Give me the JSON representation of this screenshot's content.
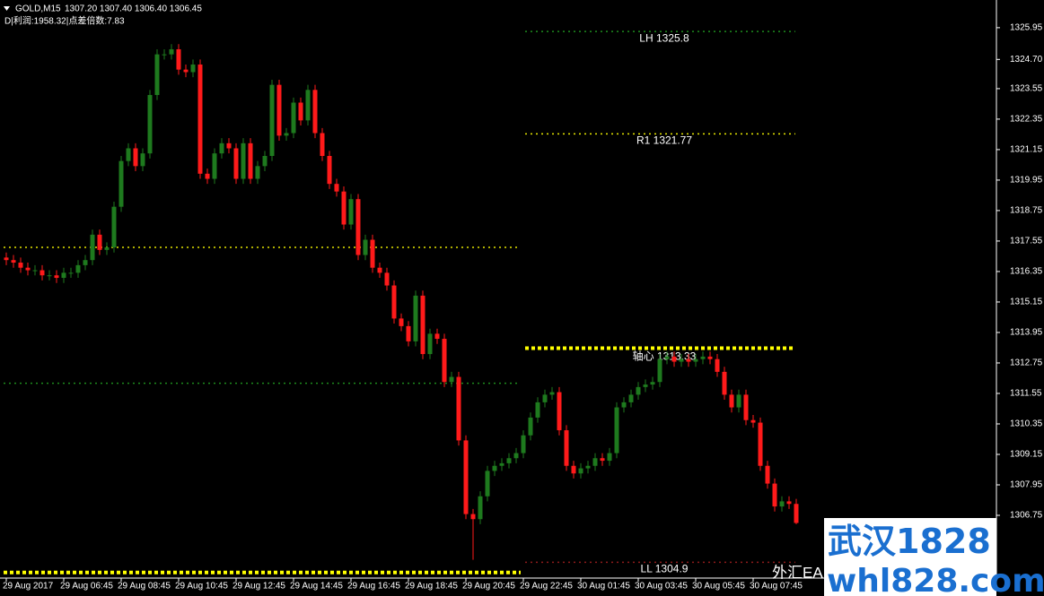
{
  "chart_data": {
    "type": "candlestick",
    "header": {
      "symbol": "GOLD,M15",
      "quote": "1307.20 1307.40 1306.40 1306.45",
      "info": "D|利润:1958.32|点差倍数:7.83"
    },
    "categories": [
      "29 Aug 2017",
      null,
      null,
      null,
      null,
      null,
      null,
      null,
      "29 Aug 06:45",
      null,
      null,
      null,
      null,
      null,
      null,
      null,
      "29 Aug 08:45",
      null,
      null,
      null,
      null,
      null,
      null,
      null,
      "29 Aug 10:45",
      null,
      null,
      null,
      null,
      null,
      null,
      null,
      "29 Aug 12:45",
      null,
      null,
      null,
      null,
      null,
      null,
      null,
      "29 Aug 14:45",
      null,
      null,
      null,
      null,
      null,
      null,
      null,
      "29 Aug 16:45",
      null,
      null,
      null,
      null,
      null,
      null,
      null,
      "29 Aug 18:45",
      null,
      null,
      null,
      null,
      null,
      null,
      null,
      "29 Aug 20:45",
      null,
      null,
      null,
      null,
      null,
      null,
      null,
      "29 Aug 22:45",
      null,
      null,
      null,
      null,
      null,
      null,
      null,
      "30 Aug 01:45",
      null,
      null,
      null,
      null,
      null,
      null,
      null,
      "30 Aug 03:45",
      null,
      null,
      null,
      null,
      null,
      null,
      null,
      "30 Aug 05:45",
      null,
      null,
      null,
      null,
      null,
      null,
      null,
      "30 Aug 07:45",
      null,
      null,
      null,
      null,
      null,
      null
    ],
    "open": [
      1316.9,
      1316.8,
      1316.7,
      1316.5,
      1316.4,
      1316.4,
      1316.2,
      1316.2,
      1316.1,
      1316.3,
      1316.3,
      1316.6,
      1316.8,
      1317.8,
      1317.2,
      1317.3,
      1318.9,
      1320.7,
      1321.2,
      1320.5,
      1321.0,
      1323.3,
      1324.9,
      1324.9,
      1325.1,
      1324.3,
      1324.2,
      1324.5,
      1320.2,
      1320.0,
      1321.0,
      1321.4,
      1321.2,
      1320.0,
      1321.4,
      1320.0,
      1320.5,
      1320.9,
      1323.7,
      1321.7,
      1321.8,
      1323.0,
      1322.3,
      1323.5,
      1321.8,
      1320.9,
      1319.8,
      1319.5,
      1318.2,
      1319.2,
      1317.0,
      1317.6,
      1316.5,
      1316.3,
      1315.8,
      1314.5,
      1314.2,
      1313.6,
      1315.4,
      1313.1,
      1313.9,
      1313.7,
      1312.0,
      1312.2,
      1309.7,
      1306.8,
      1306.6,
      1307.5,
      1308.5,
      1308.7,
      1308.8,
      1309.0,
      1309.2,
      1309.9,
      1310.6,
      1311.2,
      1311.5,
      1311.6,
      1310.1,
      1308.7,
      1308.4,
      1308.6,
      1308.7,
      1309.0,
      1308.9,
      1309.2,
      1311.0,
      1311.2,
      1311.5,
      1311.8,
      1311.9,
      1312.0,
      1312.9,
      1313.0,
      1312.8,
      1312.9,
      1312.8,
      1312.9,
      1313.0,
      1312.9,
      1312.4,
      1311.5,
      1311.0,
      1311.5,
      1310.5,
      1310.4,
      1308.7,
      1308.0,
      1307.1,
      1307.3,
      1307.2
    ],
    "high": [
      1317.1,
      1317.0,
      1316.9,
      1316.7,
      1316.6,
      1316.6,
      1316.4,
      1316.4,
      1316.5,
      1316.5,
      1316.8,
      1317.0,
      1318.0,
      1318.0,
      1317.5,
      1319.1,
      1320.9,
      1321.4,
      1321.4,
      1321.2,
      1323.5,
      1325.1,
      1325.1,
      1325.3,
      1325.3,
      1324.5,
      1324.7,
      1324.7,
      1320.4,
      1321.2,
      1321.6,
      1321.6,
      1321.4,
      1321.6,
      1321.6,
      1320.7,
      1321.1,
      1323.9,
      1323.9,
      1322.0,
      1323.2,
      1323.2,
      1323.7,
      1323.7,
      1322.0,
      1321.1,
      1320.0,
      1319.7,
      1319.4,
      1319.4,
      1317.8,
      1317.8,
      1316.7,
      1316.5,
      1316.0,
      1314.7,
      1314.4,
      1315.6,
      1315.6,
      1314.1,
      1314.1,
      1313.9,
      1312.4,
      1312.4,
      1309.9,
      1307.0,
      1307.7,
      1308.7,
      1308.9,
      1309.0,
      1309.2,
      1309.4,
      1310.1,
      1310.8,
      1311.4,
      1311.7,
      1311.8,
      1311.8,
      1310.3,
      1308.9,
      1308.8,
      1308.9,
      1309.2,
      1309.2,
      1309.4,
      1311.2,
      1311.4,
      1311.7,
      1312.0,
      1312.1,
      1312.2,
      1313.1,
      1313.2,
      1313.2,
      1313.1,
      1313.1,
      1313.1,
      1313.2,
      1313.2,
      1313.1,
      1312.6,
      1311.7,
      1311.7,
      1311.7,
      1310.7,
      1310.6,
      1308.9,
      1308.2,
      1307.5,
      1307.5,
      1307.4
    ],
    "low": [
      1316.6,
      1316.5,
      1316.3,
      1316.2,
      1316.2,
      1316.0,
      1316.0,
      1315.9,
      1315.9,
      1316.1,
      1316.1,
      1316.4,
      1316.6,
      1317.0,
      1317.0,
      1317.1,
      1318.7,
      1320.5,
      1320.3,
      1320.3,
      1320.8,
      1323.1,
      1324.7,
      1324.7,
      1324.1,
      1324.0,
      1324.0,
      1320.0,
      1319.8,
      1319.8,
      1320.8,
      1321.0,
      1319.8,
      1319.8,
      1319.8,
      1319.8,
      1320.3,
      1320.7,
      1321.5,
      1321.5,
      1321.6,
      1322.1,
      1322.1,
      1321.6,
      1320.7,
      1319.6,
      1319.3,
      1318.0,
      1318.0,
      1316.8,
      1316.8,
      1316.3,
      1316.1,
      1315.6,
      1314.3,
      1314.0,
      1313.4,
      1313.4,
      1312.9,
      1312.9,
      1313.5,
      1311.8,
      1311.8,
      1309.5,
      1306.6,
      1305.0,
      1306.4,
      1307.3,
      1308.3,
      1308.5,
      1308.6,
      1308.8,
      1309.0,
      1309.7,
      1310.4,
      1311.0,
      1311.3,
      1309.9,
      1308.5,
      1308.2,
      1308.2,
      1308.4,
      1308.5,
      1308.7,
      1308.7,
      1309.0,
      1310.8,
      1311.0,
      1311.3,
      1311.6,
      1311.7,
      1311.8,
      1312.7,
      1312.6,
      1312.6,
      1312.6,
      1312.6,
      1312.7,
      1312.7,
      1312.2,
      1311.3,
      1310.8,
      1310.8,
      1310.3,
      1310.2,
      1308.5,
      1307.8,
      1306.9,
      1306.9,
      1307.0,
      1306.4
    ],
    "close": [
      1316.8,
      1316.7,
      1316.5,
      1316.4,
      1316.4,
      1316.2,
      1316.2,
      1316.1,
      1316.3,
      1316.3,
      1316.6,
      1316.8,
      1317.8,
      1317.2,
      1317.3,
      1318.9,
      1320.7,
      1321.2,
      1320.5,
      1321.0,
      1323.3,
      1324.9,
      1324.9,
      1325.1,
      1324.3,
      1324.2,
      1324.5,
      1320.2,
      1320.0,
      1321.0,
      1321.4,
      1321.2,
      1320.0,
      1321.4,
      1320.0,
      1320.5,
      1320.9,
      1323.7,
      1321.7,
      1321.8,
      1323.0,
      1322.3,
      1323.5,
      1321.8,
      1320.9,
      1319.8,
      1319.5,
      1318.2,
      1319.2,
      1317.0,
      1317.6,
      1316.5,
      1316.3,
      1315.8,
      1314.5,
      1314.2,
      1313.6,
      1315.4,
      1313.1,
      1313.9,
      1313.7,
      1312.0,
      1312.2,
      1309.7,
      1306.8,
      1306.6,
      1307.5,
      1308.5,
      1308.7,
      1308.8,
      1309.0,
      1309.2,
      1309.9,
      1310.6,
      1311.2,
      1311.5,
      1311.6,
      1310.1,
      1308.7,
      1308.4,
      1308.6,
      1308.7,
      1309.0,
      1308.9,
      1309.2,
      1311.0,
      1311.2,
      1311.5,
      1311.8,
      1311.9,
      1312.0,
      1312.9,
      1313.0,
      1312.8,
      1312.9,
      1312.8,
      1312.9,
      1313.0,
      1312.9,
      1312.4,
      1311.5,
      1311.0,
      1311.5,
      1310.5,
      1310.4,
      1308.7,
      1308.0,
      1307.1,
      1307.3,
      1307.2,
      1306.45
    ],
    "up_color": "#1e7a1e",
    "down_color": "#ff1a1a",
    "ylim": [
      1304.28,
      1327.04
    ],
    "yticks": [
      1325.95,
      {
        "value": 1324.7,
        "label": "1324.70"
      },
      1323.55,
      1322.35,
      1321.15,
      1319.95,
      1318.75,
      1317.55,
      1316.35,
      1315.15,
      1313.95,
      1312.75,
      1311.55,
      1310.35,
      1309.15,
      1307.95,
      1306.75
    ],
    "levels": [
      {
        "label": "LH 1325.8",
        "value": 1325.8,
        "color": "#1e8c1e",
        "style": "dotted"
      },
      {
        "label": "R1 1321.77",
        "value": 1321.77,
        "color": "#e6e600",
        "style": "dotted"
      },
      {
        "label": "轴心 1313.33",
        "value": 1313.33,
        "color": "#ffff00",
        "style": "thick"
      },
      {
        "label": "LL 1304.9",
        "value": 1304.9,
        "color": "#8b1a1a",
        "style": "dotted"
      }
    ],
    "prior_levels": [
      {
        "value": 1317.3,
        "color": "#e6e600",
        "style": "dotted"
      },
      {
        "value": 1311.95,
        "color": "#1e8c1e",
        "style": "dotted"
      },
      {
        "value": 1304.5,
        "color": "#ffff00",
        "style": "thick"
      }
    ]
  },
  "watermark": {
    "overlay": "外汇EA",
    "line1": "武汉1828",
    "line2": "whl828.com"
  }
}
